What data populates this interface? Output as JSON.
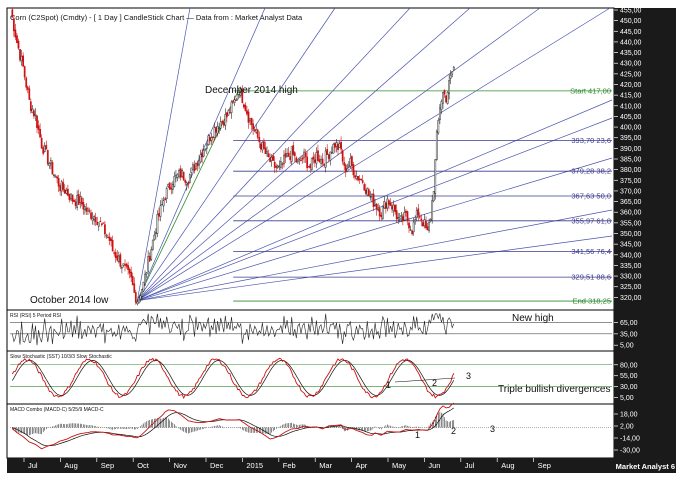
{
  "chart_data": {
    "type": "candlestick",
    "title": "Corn (C2Spot) (Cmdty) -  [ 1 Day ] CandleStick Chart — Data from : Market Analyst Data",
    "watermark": "Market Analyst 6",
    "x_tick_labels": [
      "Jul",
      "Aug",
      "Sep",
      "Oct",
      "Nov",
      "Dec",
      "2015",
      "Feb",
      "Mar",
      "Apr",
      "May",
      "Jun",
      "Jul",
      "Aug",
      "Sep"
    ],
    "price_axis": {
      "ylim": [
        315,
        455
      ],
      "tick_labels": [
        "455,00",
        "450,00",
        "445,00",
        "440,00",
        "435,00",
        "430,00",
        "425,00",
        "420,00",
        "415,00",
        "410,00",
        "405,00",
        "400,00",
        "395,00",
        "390,00",
        "385,00",
        "380,00",
        "375,00",
        "370,00",
        "365,00",
        "360,00",
        "355,00",
        "350,00",
        "345,00",
        "340,00",
        "335,00",
        "330,00",
        "325,00",
        "320,00"
      ]
    },
    "annotations": {
      "dec_high": "December 2014 high",
      "oct_low": "October 2014 low",
      "new_high": "New high",
      "triple_div": "Triple bullish divergences"
    },
    "fib_levels": [
      {
        "label": "Start 417,00",
        "value": 417.0,
        "color": "#2e8b2e"
      },
      {
        "label": "393,70 23,6",
        "value": 393.7,
        "color": "#3a3a8c"
      },
      {
        "label": "379,28 38,2",
        "value": 379.28,
        "color": "#3a3a8c"
      },
      {
        "label": "367,63 50,0",
        "value": 367.63,
        "color": "#3a3a8c"
      },
      {
        "label": "355,97 61,8",
        "value": 355.97,
        "color": "#3a3a8c"
      },
      {
        "label": "341,56 76,4",
        "value": 341.56,
        "color": "#3a3a8c"
      },
      {
        "label": "329,51 88,6",
        "value": 329.51,
        "color": "#3a3a8c"
      },
      {
        "label": "End 318,25",
        "value": 318.25,
        "color": "#2e8b2e"
      }
    ],
    "price_series_anchors": [
      [
        0,
        455
      ],
      [
        4,
        440
      ],
      [
        8,
        428
      ],
      [
        12,
        412
      ],
      [
        16,
        405
      ],
      [
        20,
        392
      ],
      [
        24,
        385
      ],
      [
        28,
        378
      ],
      [
        32,
        372
      ],
      [
        36,
        370
      ],
      [
        40,
        366
      ],
      [
        45,
        365
      ],
      [
        50,
        360
      ],
      [
        55,
        358
      ],
      [
        60,
        352
      ],
      [
        64,
        347
      ],
      [
        66,
        342
      ],
      [
        70,
        338
      ],
      [
        74,
        333
      ],
      [
        78,
        328
      ],
      [
        80,
        322
      ],
      [
        82,
        319
      ],
      [
        86,
        326
      ],
      [
        90,
        340
      ],
      [
        95,
        356
      ],
      [
        100,
        368
      ],
      [
        105,
        375
      ],
      [
        110,
        378
      ],
      [
        115,
        376
      ],
      [
        120,
        383
      ],
      [
        125,
        390
      ],
      [
        130,
        397
      ],
      [
        135,
        402
      ],
      [
        140,
        405
      ],
      [
        145,
        412
      ],
      [
        148,
        418
      ],
      [
        151,
        412
      ],
      [
        154,
        405
      ],
      [
        158,
        398
      ],
      [
        162,
        392
      ],
      [
        166,
        386
      ],
      [
        170,
        382
      ],
      [
        174,
        380
      ],
      [
        178,
        385
      ],
      [
        182,
        388
      ],
      [
        186,
        383
      ],
      [
        190,
        386
      ],
      [
        194,
        381
      ],
      [
        198,
        387
      ],
      [
        202,
        384
      ],
      [
        206,
        388
      ],
      [
        210,
        392
      ],
      [
        214,
        389
      ],
      [
        216,
        380
      ],
      [
        220,
        383
      ],
      [
        224,
        377
      ],
      [
        228,
        375
      ],
      [
        232,
        368
      ],
      [
        236,
        364
      ],
      [
        240,
        360
      ],
      [
        244,
        366
      ],
      [
        248,
        362
      ],
      [
        252,
        355
      ],
      [
        256,
        358
      ],
      [
        260,
        352
      ],
      [
        264,
        360
      ],
      [
        268,
        354
      ],
      [
        270,
        350
      ],
      [
        272,
        358
      ],
      [
        274,
        372
      ],
      [
        276,
        395
      ],
      [
        278,
        410
      ],
      [
        280,
        416
      ],
      [
        282,
        414
      ],
      [
        284,
        420
      ],
      [
        286,
        426
      ],
      [
        287,
        428
      ]
    ],
    "rsi_panel": {
      "label": "RSI (RSI) 5 Period RSI",
      "tick_labels": [
        "65,00",
        "35,00",
        "5,00"
      ]
    },
    "stochastic_panel": {
      "label": "Slow Stochastic (SST) 10/3/3 Slow Stochastic",
      "tick_labels": [
        "80,00",
        "55,00",
        "30,00",
        "5,00"
      ],
      "divergence_markers": [
        "1",
        "2",
        "3"
      ]
    },
    "macd_panel": {
      "label": "MACD Combo (MACD-C) 5/25/9 MACD-C",
      "tick_labels": [
        "18,00",
        "2,00",
        "-14,00",
        "-30,00"
      ],
      "divergence_markers": [
        "1",
        "2",
        "3"
      ]
    },
    "colors": {
      "up": "#2a2a2a",
      "down": "#cc1111",
      "fan": "#4a55b0",
      "fib": "#3a3a8c",
      "start_end": "#2e8b2e",
      "axis_bg": "#1a1a1a",
      "axis_text": "#ffffff",
      "stoch_k": "#cc1111",
      "stoch_d": "#111111"
    }
  }
}
